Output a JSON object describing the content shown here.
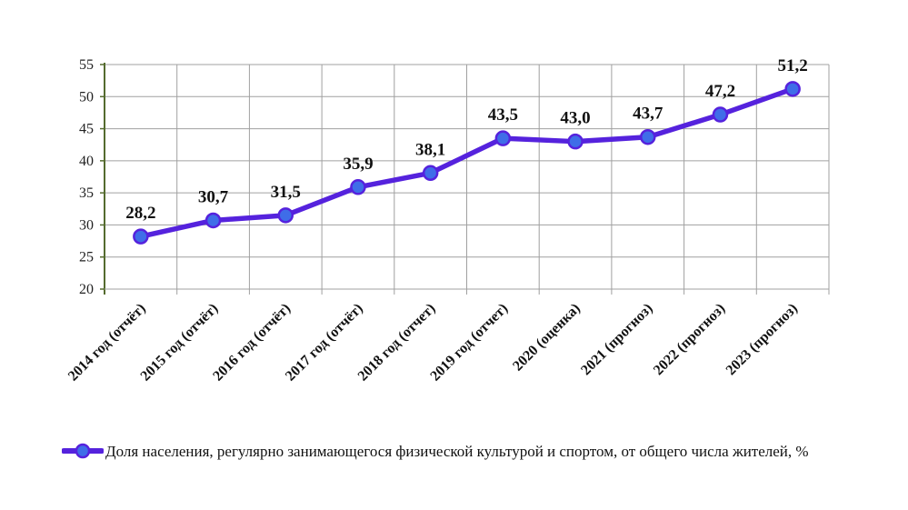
{
  "chart_data": {
    "type": "line",
    "categories": [
      "2014 год (отчёт)",
      "2015 год (отчёт)",
      "2016 год (отчёт)",
      "2017 год (отчёт)",
      "2018 год (отчет)",
      "2019 год (отчет)",
      "2020 (оценка)",
      "2021 (прогноз)",
      "2022 (прогноз)",
      "2023 (прогноз)"
    ],
    "series": [
      {
        "name": "Доля населения, регулярно занимающегося  физической культурой  и спортом, от общего числа жителей, %",
        "values": [
          28.2,
          30.7,
          31.5,
          35.9,
          38.1,
          43.5,
          43.0,
          43.7,
          47.2,
          51.2
        ],
        "data_labels": [
          "28,2",
          "30,7",
          "31,5",
          "35,9",
          "38,1",
          "43,5",
          "43,0",
          "43,7",
          "47,2",
          "51,2"
        ],
        "color": "#5522dd",
        "marker_color": "#3f6de8"
      }
    ],
    "yticks": [
      "20",
      "25",
      "30",
      "35",
      "40",
      "45",
      "50",
      "55"
    ],
    "ylim": [
      20,
      55
    ],
    "grid": true,
    "legend_position": "bottom",
    "title": "",
    "xlabel": "",
    "ylabel": ""
  }
}
